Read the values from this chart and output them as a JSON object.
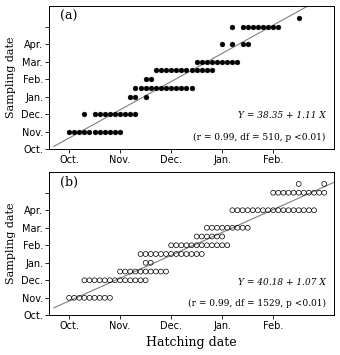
{
  "panel_a": {
    "label": "(a)",
    "equation": "Y = 38.35 + 1.11 ×",
    "eq_line1": "Y = 38.35 + 1.11 X",
    "stats_line": "(r = 0.99, df = 510, p <0.01)",
    "marker_filled": true,
    "data_points": [
      [
        9.0,
        11.0
      ],
      [
        9.1,
        11.0
      ],
      [
        9.2,
        11.0
      ],
      [
        9.3,
        11.0
      ],
      [
        9.4,
        11.0
      ],
      [
        9.5,
        11.0
      ],
      [
        9.6,
        11.0
      ],
      [
        9.7,
        11.0
      ],
      [
        9.8,
        11.0
      ],
      [
        9.9,
        11.0
      ],
      [
        10.0,
        11.0
      ],
      [
        9.3,
        12.0
      ],
      [
        9.5,
        12.0
      ],
      [
        9.6,
        12.0
      ],
      [
        9.7,
        12.0
      ],
      [
        9.8,
        12.0
      ],
      [
        9.9,
        12.0
      ],
      [
        10.0,
        12.0
      ],
      [
        10.1,
        12.0
      ],
      [
        10.2,
        12.0
      ],
      [
        10.3,
        12.0
      ],
      [
        10.2,
        13.0
      ],
      [
        10.3,
        13.0
      ],
      [
        10.5,
        13.0
      ],
      [
        10.3,
        13.5
      ],
      [
        10.4,
        13.5
      ],
      [
        10.5,
        13.5
      ],
      [
        10.6,
        13.5
      ],
      [
        10.7,
        13.5
      ],
      [
        10.8,
        13.5
      ],
      [
        10.9,
        13.5
      ],
      [
        11.0,
        13.5
      ],
      [
        11.1,
        13.5
      ],
      [
        11.2,
        13.5
      ],
      [
        11.3,
        13.5
      ],
      [
        11.4,
        13.5
      ],
      [
        10.5,
        14.0
      ],
      [
        10.6,
        14.0
      ],
      [
        10.7,
        14.5
      ],
      [
        10.8,
        14.5
      ],
      [
        10.9,
        14.5
      ],
      [
        11.0,
        14.5
      ],
      [
        11.1,
        14.5
      ],
      [
        11.2,
        14.5
      ],
      [
        11.3,
        14.5
      ],
      [
        11.4,
        14.5
      ],
      [
        11.5,
        14.5
      ],
      [
        11.6,
        14.5
      ],
      [
        11.7,
        14.5
      ],
      [
        11.8,
        14.5
      ],
      [
        11.5,
        15.0
      ],
      [
        11.6,
        15.0
      ],
      [
        11.7,
        15.0
      ],
      [
        11.8,
        15.0
      ],
      [
        11.9,
        15.0
      ],
      [
        12.0,
        15.0
      ],
      [
        12.1,
        15.0
      ],
      [
        12.2,
        15.0
      ],
      [
        12.3,
        15.0
      ],
      [
        12.0,
        16.0
      ],
      [
        12.2,
        16.0
      ],
      [
        12.4,
        16.0
      ],
      [
        12.5,
        16.0
      ],
      [
        12.2,
        17.0
      ],
      [
        12.4,
        17.0
      ],
      [
        12.5,
        17.0
      ],
      [
        12.6,
        17.0
      ],
      [
        12.7,
        17.0
      ],
      [
        12.8,
        17.0
      ],
      [
        12.9,
        17.0
      ],
      [
        13.0,
        17.0
      ],
      [
        13.1,
        17.0
      ],
      [
        13.5,
        17.5
      ]
    ]
  },
  "panel_b": {
    "label": "(b)",
    "eq_line1": "Y = 40.18 + 1.07 X",
    "stats_line": "(r = 0.99, df = 1529, p <0.01)",
    "marker_filled": false,
    "data_points": [
      [
        9.0,
        11.0
      ],
      [
        9.1,
        11.0
      ],
      [
        9.2,
        11.0
      ],
      [
        9.3,
        11.0
      ],
      [
        9.4,
        11.0
      ],
      [
        9.5,
        11.0
      ],
      [
        9.6,
        11.0
      ],
      [
        9.7,
        11.0
      ],
      [
        9.8,
        11.0
      ],
      [
        9.3,
        12.0
      ],
      [
        9.4,
        12.0
      ],
      [
        9.5,
        12.0
      ],
      [
        9.6,
        12.0
      ],
      [
        9.7,
        12.0
      ],
      [
        9.8,
        12.0
      ],
      [
        9.9,
        12.0
      ],
      [
        10.0,
        12.0
      ],
      [
        10.1,
        12.0
      ],
      [
        10.2,
        12.0
      ],
      [
        10.3,
        12.0
      ],
      [
        10.4,
        12.0
      ],
      [
        10.5,
        12.0
      ],
      [
        10.0,
        12.5
      ],
      [
        10.1,
        12.5
      ],
      [
        10.2,
        12.5
      ],
      [
        10.3,
        12.5
      ],
      [
        10.4,
        12.5
      ],
      [
        10.5,
        12.5
      ],
      [
        10.6,
        12.5
      ],
      [
        10.7,
        12.5
      ],
      [
        10.8,
        12.5
      ],
      [
        10.9,
        12.5
      ],
      [
        10.5,
        13.0
      ],
      [
        10.6,
        13.0
      ],
      [
        10.4,
        13.5
      ],
      [
        10.5,
        13.5
      ],
      [
        10.6,
        13.5
      ],
      [
        10.7,
        13.5
      ],
      [
        10.8,
        13.5
      ],
      [
        10.9,
        13.5
      ],
      [
        11.0,
        13.5
      ],
      [
        11.1,
        13.5
      ],
      [
        11.2,
        13.5
      ],
      [
        11.3,
        13.5
      ],
      [
        11.4,
        13.5
      ],
      [
        11.5,
        13.5
      ],
      [
        11.6,
        13.5
      ],
      [
        11.0,
        14.0
      ],
      [
        11.1,
        14.0
      ],
      [
        11.2,
        14.0
      ],
      [
        11.3,
        14.0
      ],
      [
        11.4,
        14.0
      ],
      [
        11.5,
        14.0
      ],
      [
        11.6,
        14.0
      ],
      [
        11.7,
        14.0
      ],
      [
        11.8,
        14.0
      ],
      [
        11.9,
        14.0
      ],
      [
        12.0,
        14.0
      ],
      [
        12.1,
        14.0
      ],
      [
        11.5,
        14.5
      ],
      [
        11.6,
        14.5
      ],
      [
        11.7,
        14.5
      ],
      [
        11.8,
        14.5
      ],
      [
        11.9,
        14.5
      ],
      [
        12.0,
        14.5
      ],
      [
        11.7,
        15.0
      ],
      [
        11.8,
        15.0
      ],
      [
        11.9,
        15.0
      ],
      [
        12.0,
        15.0
      ],
      [
        12.1,
        15.0
      ],
      [
        12.2,
        15.0
      ],
      [
        12.3,
        15.0
      ],
      [
        12.4,
        15.0
      ],
      [
        12.5,
        15.0
      ],
      [
        12.2,
        16.0
      ],
      [
        12.3,
        16.0
      ],
      [
        12.4,
        16.0
      ],
      [
        12.5,
        16.0
      ],
      [
        12.6,
        16.0
      ],
      [
        12.7,
        16.0
      ],
      [
        12.8,
        16.0
      ],
      [
        12.9,
        16.0
      ],
      [
        13.0,
        16.0
      ],
      [
        13.1,
        16.0
      ],
      [
        13.2,
        16.0
      ],
      [
        13.3,
        16.0
      ],
      [
        13.4,
        16.0
      ],
      [
        13.5,
        16.0
      ],
      [
        13.6,
        16.0
      ],
      [
        13.7,
        16.0
      ],
      [
        13.8,
        16.0
      ],
      [
        13.0,
        17.0
      ],
      [
        13.1,
        17.0
      ],
      [
        13.2,
        17.0
      ],
      [
        13.3,
        17.0
      ],
      [
        13.4,
        17.0
      ],
      [
        13.5,
        17.0
      ],
      [
        13.6,
        17.0
      ],
      [
        13.7,
        17.0
      ],
      [
        13.8,
        17.0
      ],
      [
        13.9,
        17.0
      ],
      [
        14.0,
        17.0
      ],
      [
        13.5,
        17.5
      ],
      [
        14.0,
        17.5
      ]
    ]
  },
  "xlim": [
    8.6,
    14.2
  ],
  "ylim": [
    10.3,
    18.2
  ],
  "x_ticks": [
    9,
    10,
    11,
    12,
    13
  ],
  "x_tick_labels": [
    "Oct.",
    "Nov.",
    "Dec.",
    "Jan.",
    "Feb."
  ],
  "y_ticks": [
    10,
    11,
    12,
    13,
    14,
    15,
    16,
    17
  ],
  "y_tick_labels": [
    "Oct.",
    "Nov.",
    "Dec.",
    "Jan.",
    "Feb.",
    "Mar.",
    "Apr.",
    ""
  ],
  "xlabel": "Hatching date",
  "ylabel": "Sampling date",
  "background_color": "#ffffff",
  "fontsize_axis_label": 8,
  "fontsize_xlabel_main": 9,
  "fontsize_tick": 7,
  "fontsize_annot": 6.5,
  "fontsize_panel_label": 9
}
